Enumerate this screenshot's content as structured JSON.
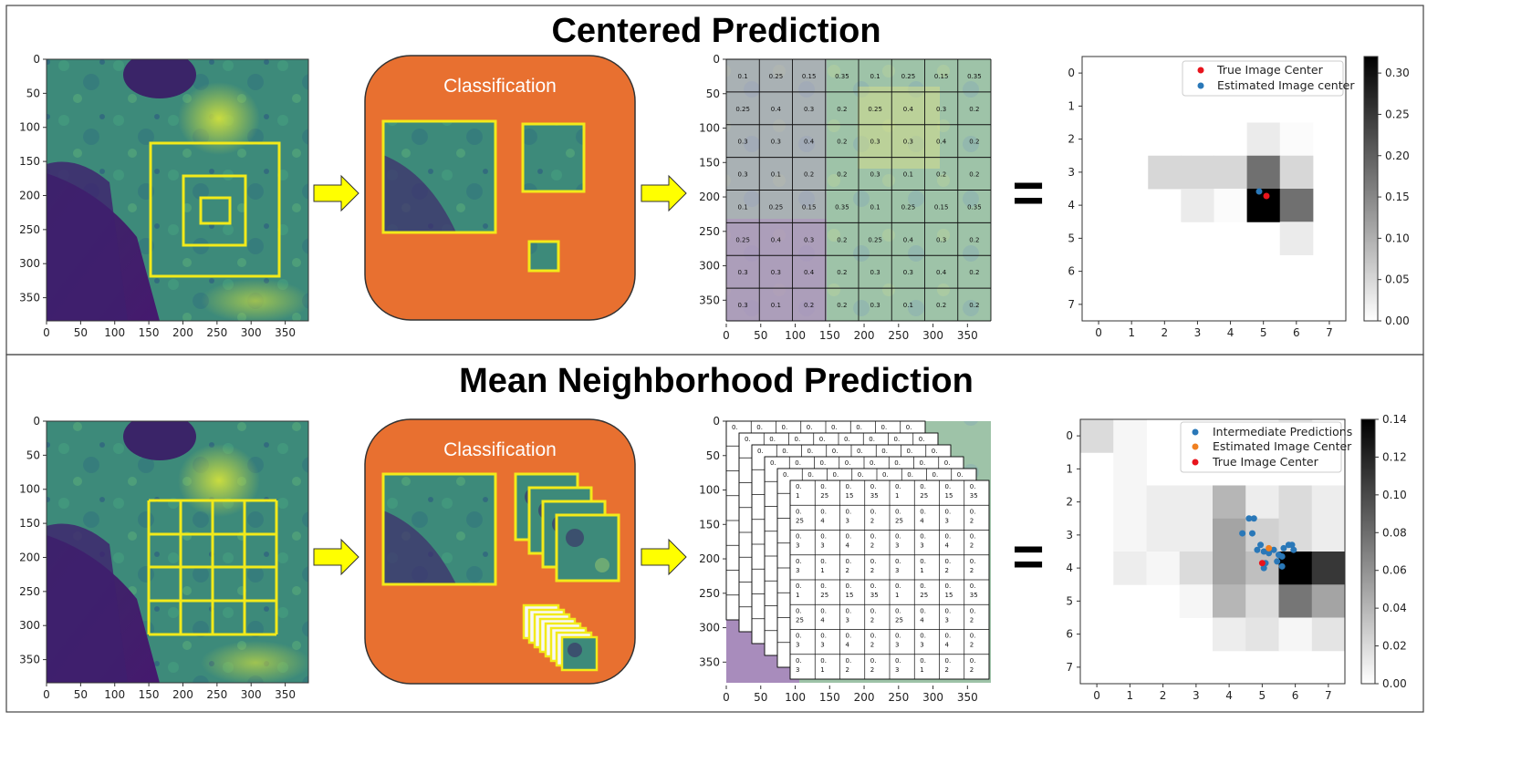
{
  "top": {
    "title": "Centered Prediction",
    "classification_label": "Classification",
    "grid_values": [
      [
        "0.1",
        "0.25",
        "0.15",
        "0.35",
        "0.1",
        "0.25",
        "0.15",
        "0.35"
      ],
      [
        "0.25",
        "0.4",
        "0.3",
        "0.2",
        "0.25",
        "0.4",
        "0.3",
        "0.2"
      ],
      [
        "0.3",
        "0.3",
        "0.4",
        "0.2",
        "0.3",
        "0.3",
        "0.4",
        "0.2"
      ],
      [
        "0.3",
        "0.1",
        "0.2",
        "0.2",
        "0.3",
        "0.1",
        "0.2",
        "0.2"
      ],
      [
        "0.1",
        "0.25",
        "0.15",
        "0.35",
        "0.1",
        "0.25",
        "0.15",
        "0.35"
      ],
      [
        "0.25",
        "0.4",
        "0.3",
        "0.2",
        "0.25",
        "0.4",
        "0.3",
        "0.2"
      ],
      [
        "0.3",
        "0.3",
        "0.4",
        "0.2",
        "0.3",
        "0.3",
        "0.4",
        "0.2"
      ],
      [
        "0.3",
        "0.1",
        "0.2",
        "0.2",
        "0.3",
        "0.1",
        "0.2",
        "0.2"
      ]
    ],
    "legend": {
      "true_center": "True Image Center",
      "estimated_center": "Estimated Image center"
    },
    "colorbar_ticks": [
      "0.00",
      "0.05",
      "0.10",
      "0.15",
      "0.20",
      "0.25",
      "0.30"
    ]
  },
  "bottom": {
    "title": "Mean Neighborhood Prediction",
    "classification_label": "Classification",
    "grid_values": [
      [
        "0.\n1",
        "0.\n25",
        "0.\n15",
        "0.\n35",
        "0.\n1",
        "0.\n25",
        "0.\n15",
        "0.\n35"
      ],
      [
        "0.\n25",
        "0.\n4",
        "0.\n3",
        "0.\n2",
        "0.\n25",
        "0.\n4",
        "0.\n3",
        "0.\n2"
      ],
      [
        "0.\n3",
        "0.\n3",
        "0.\n4",
        "0.\n2",
        "0.\n3",
        "0.\n3",
        "0.\n4",
        "0.\n2"
      ],
      [
        "0.\n3",
        "0.\n1",
        "0.\n2",
        "0.\n2",
        "0.\n3",
        "0.\n1",
        "0.\n2",
        "0.\n2"
      ],
      [
        "0.\n1",
        "0.\n25",
        "0.\n15",
        "0.\n35",
        "0.\n1",
        "0.\n25",
        "0.\n15",
        "0.\n35"
      ],
      [
        "0.\n25",
        "0.\n4",
        "0.\n3",
        "0.\n2",
        "0.\n25",
        "0.\n4",
        "0.\n3",
        "0.\n2"
      ],
      [
        "0.\n3",
        "0.\n3",
        "0.\n4",
        "0.\n2",
        "0.\n3",
        "0.\n3",
        "0.\n4",
        "0.\n2"
      ],
      [
        "0.\n3",
        "0.\n1",
        "0.\n2",
        "0.\n2",
        "0.\n3",
        "0.\n1",
        "0.\n2",
        "0.\n2"
      ]
    ],
    "legend": {
      "intermediate": "Intermediate Predictions",
      "estimated_center": "Estimated Image Center",
      "true_center": "True Image Center"
    },
    "colorbar_ticks": [
      "0.00",
      "0.02",
      "0.04",
      "0.06",
      "0.08",
      "0.10",
      "0.12",
      "0.14"
    ]
  },
  "image_axis_ticks": [
    "0",
    "50",
    "100",
    "150",
    "200",
    "250",
    "300",
    "350"
  ],
  "heatmap_axis_ticks": [
    "0",
    "1",
    "2",
    "3",
    "4",
    "5",
    "6",
    "7"
  ],
  "equals": "=",
  "colors": {
    "classification_box": "#e87030",
    "arrow": "#ffff00",
    "yellow_box": "#f2ea1a",
    "true_center": "#e8141c",
    "estimated_center": "#2a78b8",
    "intermediate": "#2a78b8",
    "estimated_orange": "#f08020"
  }
}
